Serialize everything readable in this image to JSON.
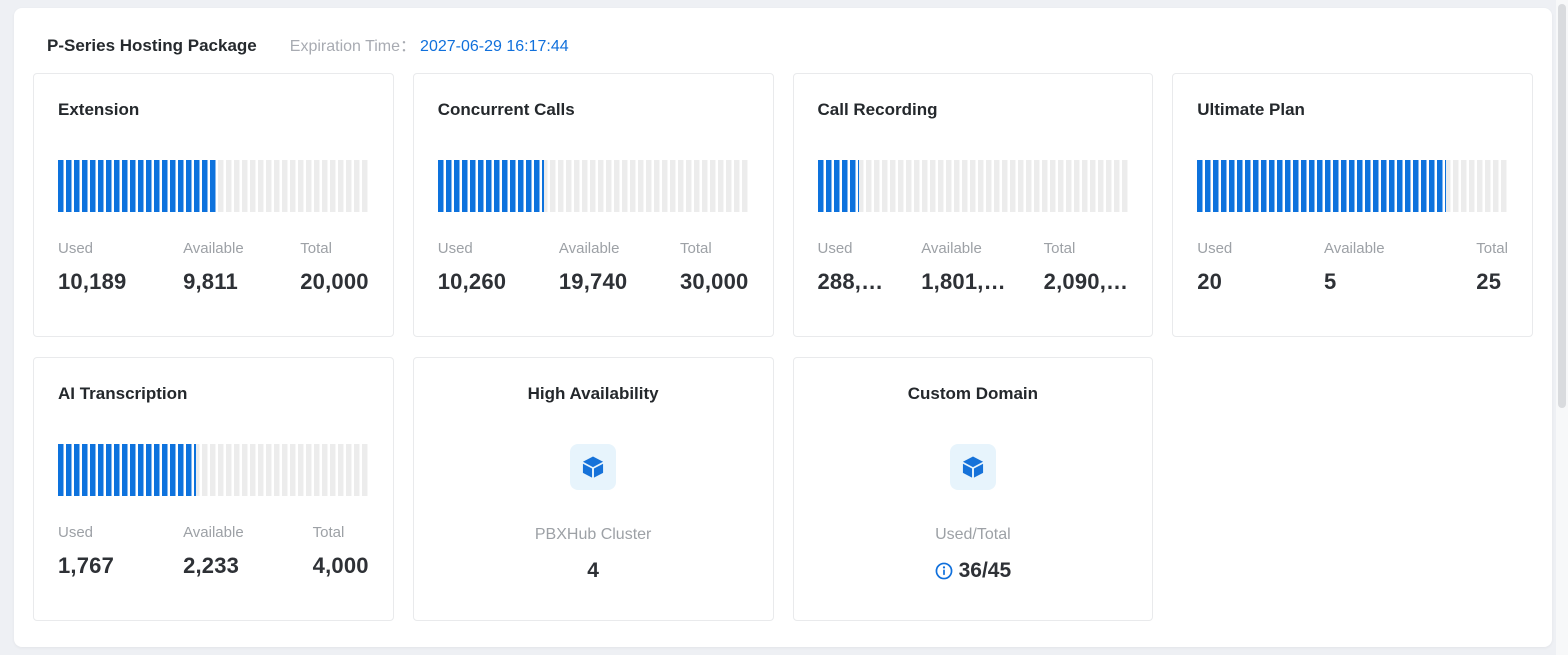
{
  "header": {
    "title": "P-Series Hosting Package",
    "expiration_label": "Expiration Time：",
    "expiration_value": "2027-06-29 16:17:44"
  },
  "colors": {
    "bar_fill_blue": "#0d72dd",
    "bar_track_gray": "#ececec",
    "link_blue": "#1070dc",
    "icon_bg": "#e7f4fc",
    "cube_blue": "#1672d9"
  },
  "stat_labels": {
    "used": "Used",
    "available": "Available",
    "total": "Total"
  },
  "cards": [
    {
      "title": "Extension",
      "type": "meter",
      "percent": 51,
      "used": "10,189",
      "available": "9,811",
      "total": "20,000"
    },
    {
      "title": "Concurrent Calls",
      "type": "meter",
      "percent": 34.2,
      "used": "10,260",
      "available": "19,740",
      "total": "30,000"
    },
    {
      "title": "Call Recording",
      "type": "meter",
      "percent": 13.5,
      "used": "288,…",
      "available": "1,801,…",
      "total": "2,090,…"
    },
    {
      "title": "Ultimate Plan",
      "type": "meter",
      "percent": 80,
      "used": "20",
      "available": "5",
      "total": "25"
    },
    {
      "title": "AI Transcription",
      "type": "meter",
      "percent": 44.3,
      "used": "1,767",
      "available": "2,233",
      "total": "4,000"
    },
    {
      "title": "High Availability",
      "type": "icon",
      "icon": "cube-icon",
      "label": "PBXHub Cluster",
      "value": "4"
    },
    {
      "title": "Custom Domain",
      "type": "icon",
      "icon": "cube-icon",
      "label": "Used/Total",
      "value": "36/45",
      "has_info_icon": true
    }
  ]
}
